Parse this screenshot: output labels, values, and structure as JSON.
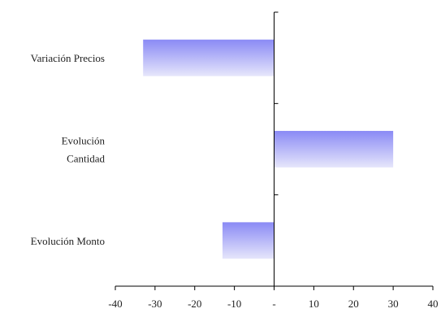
{
  "chart_data": {
    "type": "bar",
    "orientation": "horizontal",
    "categories": [
      [
        "Variación Precios"
      ],
      [
        "Evolución",
        "Cantidad"
      ],
      [
        "Evolución Monto"
      ]
    ],
    "values": [
      -33,
      30,
      -13
    ],
    "xlim": [
      -40,
      40
    ],
    "xticks": [
      -40,
      -30,
      -20,
      -10,
      0,
      10,
      20,
      30,
      40
    ],
    "xtick_labels": [
      "-40",
      "-30",
      "-20",
      "-10",
      "-",
      "10",
      "20",
      "30",
      "40"
    ],
    "title": "",
    "xlabel": "",
    "ylabel": "",
    "grid": false,
    "legend": "none",
    "bar_gradient": [
      "#8a8af5",
      "#e6e6fb"
    ],
    "axis_color": "#000000"
  }
}
